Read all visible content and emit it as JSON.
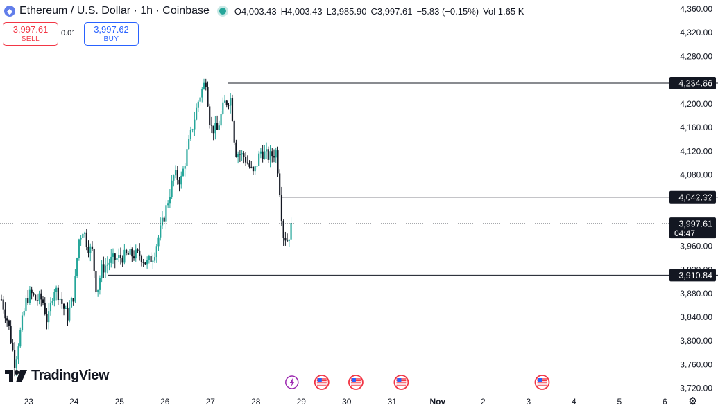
{
  "header": {
    "coin_icon": "ethereum-icon",
    "title": "Ethereum / U.S. Dollar · 1h · Coinbase",
    "market_status_color": "#26a69a",
    "ohlc": {
      "o_label": "O",
      "o_value": "4,003.43",
      "h_label": "H",
      "h_value": "4,003.43",
      "l_label": "L",
      "l_value": "3,985.90",
      "c_label": "C",
      "c_value": "3,997.61",
      "change": "−5.83 (−0.15%)",
      "vol_label": "Vol",
      "vol_value": "1.65 K"
    }
  },
  "trade": {
    "sell_price": "3,997.61",
    "sell_label": "SELL",
    "spread": "0.01",
    "buy_price": "3,997.62",
    "buy_label": "BUY"
  },
  "logo_text": "TradingView",
  "colors": {
    "up": "#26a69a",
    "down": "#131722",
    "accent": "#2962ff",
    "sell": "#f23645",
    "event": "#f23645"
  },
  "chart_data": {
    "type": "candlestick",
    "y_ticks": [
      "4,360.00",
      "4,320.00",
      "4,280.00",
      "4,240.00",
      "4,200.00",
      "4,160.00",
      "4,120.00",
      "4,080.00",
      "4,040.00",
      "3,960.00",
      "3,920.00",
      "3,880.00",
      "3,840.00",
      "3,800.00",
      "3,760.00",
      "3,720.00"
    ],
    "y_tick_values": [
      4360,
      4320,
      4280,
      4240,
      4200,
      4160,
      4120,
      4080,
      4040,
      3960,
      3920,
      3880,
      3840,
      3800,
      3760,
      3720
    ],
    "ylim": [
      3715,
      4375
    ],
    "x_ticks": [
      "23",
      "24",
      "25",
      "26",
      "27",
      "28",
      "29",
      "30",
      "31",
      "Nov",
      "2",
      "3",
      "4",
      "5",
      "6"
    ],
    "x_tick_days": [
      23,
      24,
      25,
      26,
      27,
      28,
      29,
      30,
      31,
      32,
      33,
      34,
      35,
      36,
      37
    ],
    "x_tick_bold": [
      false,
      false,
      false,
      false,
      false,
      false,
      false,
      false,
      false,
      true,
      false,
      false,
      false,
      false,
      false
    ],
    "xlim_days": [
      22.37,
      38.17
    ],
    "levels": [
      {
        "value": 4234.86,
        "label": "4,234.86",
        "start_day": 27.38
      },
      {
        "value": 4042.32,
        "label": "4,042.32",
        "start_day": 28.56
      },
      {
        "value": 3910.84,
        "label": "3,910.84",
        "start_day": 24.75
      }
    ],
    "last_price": {
      "value": 3997.61,
      "label": "3,997.61",
      "countdown": "04:47"
    },
    "event_days": [
      29.45,
      30.2,
      31.2,
      34.3
    ],
    "event_icons": [
      "sparkle-flash-icon",
      "us-flag-icon",
      "us-flag-icon",
      "us-flag-icon",
      "us-flag-icon"
    ],
    "ohlc_path": [
      {
        "day": 22.4,
        "price": 3870
      },
      {
        "day": 22.55,
        "price": 3830
      },
      {
        "day": 22.7,
        "price": 3760
      },
      {
        "day": 22.78,
        "price": 3800
      },
      {
        "day": 22.95,
        "price": 3870
      },
      {
        "day": 23.05,
        "price": 3880
      },
      {
        "day": 23.15,
        "price": 3870
      },
      {
        "day": 23.3,
        "price": 3870
      },
      {
        "day": 23.42,
        "price": 3830
      },
      {
        "day": 23.55,
        "price": 3890
      },
      {
        "day": 23.65,
        "price": 3880
      },
      {
        "day": 23.75,
        "price": 3860
      },
      {
        "day": 23.85,
        "price": 3840
      },
      {
        "day": 24.0,
        "price": 3880
      },
      {
        "day": 24.1,
        "price": 3970
      },
      {
        "day": 24.2,
        "price": 3990
      },
      {
        "day": 24.3,
        "price": 3960
      },
      {
        "day": 24.4,
        "price": 3950
      },
      {
        "day": 24.5,
        "price": 3880
      },
      {
        "day": 24.6,
        "price": 3920
      },
      {
        "day": 24.8,
        "price": 3935
      },
      {
        "day": 25.0,
        "price": 3940
      },
      {
        "day": 25.2,
        "price": 3945
      },
      {
        "day": 25.45,
        "price": 3945
      },
      {
        "day": 25.6,
        "price": 3930
      },
      {
        "day": 25.75,
        "price": 3945
      },
      {
        "day": 25.95,
        "price": 4000
      },
      {
        "day": 26.2,
        "price": 4080
      },
      {
        "day": 26.35,
        "price": 4070
      },
      {
        "day": 26.6,
        "price": 4160
      },
      {
        "day": 26.75,
        "price": 4210
      },
      {
        "day": 26.9,
        "price": 4240
      },
      {
        "day": 27.0,
        "price": 4160
      },
      {
        "day": 27.15,
        "price": 4155
      },
      {
        "day": 27.3,
        "price": 4200
      },
      {
        "day": 27.45,
        "price": 4210
      },
      {
        "day": 27.55,
        "price": 4120
      },
      {
        "day": 27.75,
        "price": 4110
      },
      {
        "day": 27.95,
        "price": 4080
      },
      {
        "day": 28.1,
        "price": 4120
      },
      {
        "day": 28.3,
        "price": 4110
      },
      {
        "day": 28.45,
        "price": 4120
      },
      {
        "day": 28.52,
        "price": 4060
      },
      {
        "day": 28.6,
        "price": 3980
      },
      {
        "day": 28.7,
        "price": 3970
      },
      {
        "day": 28.8,
        "price": 3997.61
      }
    ]
  }
}
